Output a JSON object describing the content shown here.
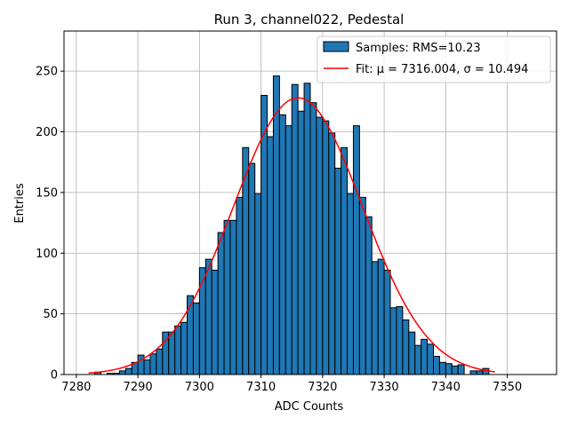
{
  "chart_data": {
    "type": "bar",
    "title": "Run 3, channel022, Pedestal",
    "xlabel": "ADC Counts",
    "ylabel": "Entries",
    "xlim": [
      7278,
      7358
    ],
    "ylim": [
      0,
      283
    ],
    "grid": true,
    "legend_position": "top-right",
    "xticks": [
      7280,
      7290,
      7300,
      7310,
      7320,
      7330,
      7340,
      7350
    ],
    "yticks": [
      0,
      50,
      100,
      150,
      200,
      250
    ],
    "bin_start": 7282,
    "bin_width": 1,
    "bin_counts": [
      0,
      2,
      0,
      1,
      1,
      3,
      5,
      10,
      16,
      12,
      17,
      21,
      35,
      35,
      40,
      43,
      65,
      59,
      88,
      95,
      86,
      117,
      127,
      127,
      146,
      187,
      174,
      149,
      230,
      196,
      246,
      214,
      205,
      239,
      217,
      240,
      224,
      212,
      209,
      199,
      170,
      187,
      149,
      205,
      146,
      130,
      93,
      95,
      86,
      55,
      56,
      45,
      35,
      24,
      29,
      25,
      15,
      10,
      9,
      7,
      8,
      0,
      3,
      3,
      5
    ],
    "series": [
      {
        "name": "Samples: RMS=10.23",
        "kind": "histogram",
        "color": "#1f77b4"
      },
      {
        "name": "Fit: μ = 7316.004, σ = 10.494",
        "kind": "gaussian-fit",
        "color": "#ff0000",
        "mu": 7316.004,
        "sigma": 10.494,
        "amplitude": 228,
        "x_range": [
          7282,
          7348
        ]
      }
    ]
  }
}
